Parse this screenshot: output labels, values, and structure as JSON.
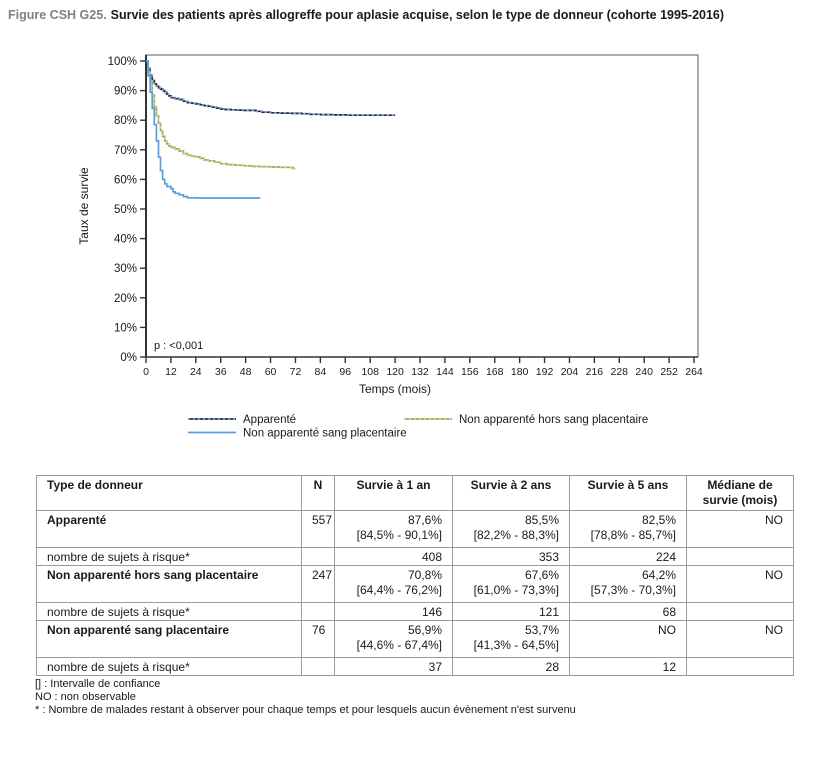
{
  "title": {
    "prefix": "Figure CSH G25.",
    "text": "Survie des patients après allogreffe pour aplasie acquise, selon le type de donneur (cohorte 1995-2016)"
  },
  "chart_data": {
    "type": "line",
    "subtype": "kaplan-meier-step",
    "xlabel": "Temps (mois)",
    "ylabel": "Taux de survie",
    "xlim": [
      0,
      264
    ],
    "ylim": [
      0,
      100
    ],
    "xticks": [
      0,
      12,
      24,
      36,
      48,
      60,
      72,
      84,
      96,
      108,
      120,
      132,
      144,
      156,
      168,
      180,
      192,
      204,
      216,
      228,
      240,
      252,
      264
    ],
    "yticks": [
      0,
      10,
      20,
      30,
      40,
      50,
      60,
      70,
      80,
      90,
      100
    ],
    "ytick_suffix": "%",
    "grid": false,
    "annotation": "p : <0,001",
    "legend_position": "bottom",
    "legend_rows": [
      [
        0,
        1
      ],
      [
        2
      ]
    ],
    "series": [
      {
        "name": "Apparenté",
        "color": "#1f2b52",
        "overlay_color": "#9fc6ea",
        "dashed_overlay": true,
        "points": [
          [
            0,
            100
          ],
          [
            1,
            97.5
          ],
          [
            2,
            95.2
          ],
          [
            3,
            93.4
          ],
          [
            4,
            92.3
          ],
          [
            5,
            91.5
          ],
          [
            6,
            91
          ],
          [
            7,
            90.5
          ],
          [
            8,
            90
          ],
          [
            9,
            89.4
          ],
          [
            10,
            88.8
          ],
          [
            11,
            88.2
          ],
          [
            12,
            87.6
          ],
          [
            14,
            87.3
          ],
          [
            16,
            87
          ],
          [
            18,
            86.4
          ],
          [
            20,
            85.9
          ],
          [
            22,
            85.7
          ],
          [
            24,
            85.5
          ],
          [
            26,
            85.2
          ],
          [
            28,
            84.9
          ],
          [
            30,
            84.7
          ],
          [
            32,
            84.4
          ],
          [
            34,
            84.1
          ],
          [
            36,
            83.8
          ],
          [
            38,
            83.6
          ],
          [
            41,
            83.5
          ],
          [
            44,
            83.4
          ],
          [
            47,
            83.3
          ],
          [
            53,
            83.0
          ],
          [
            56,
            82.7
          ],
          [
            60,
            82.5
          ],
          [
            65,
            82.4
          ],
          [
            70,
            82.3
          ],
          [
            75,
            82.2
          ],
          [
            79,
            82.0
          ],
          [
            84,
            81.9
          ],
          [
            90,
            81.8
          ],
          [
            97,
            81.7
          ],
          [
            120,
            81.7
          ]
        ]
      },
      {
        "name": "Non apparenté hors sang placentaire",
        "color": "#9caa50",
        "overlay_color": "#d6dda8",
        "dashed_overlay": true,
        "points": [
          [
            0,
            100
          ],
          [
            1,
            96.5
          ],
          [
            2,
            93
          ],
          [
            3,
            88.5
          ],
          [
            4,
            84.5
          ],
          [
            5,
            81.5
          ],
          [
            6,
            79
          ],
          [
            7,
            76.5
          ],
          [
            8,
            74.5
          ],
          [
            9,
            73
          ],
          [
            10,
            72
          ],
          [
            11,
            71.3
          ],
          [
            12,
            70.8
          ],
          [
            14,
            70.3
          ],
          [
            16,
            69.6
          ],
          [
            18,
            68.7
          ],
          [
            20,
            68.1
          ],
          [
            22,
            67.8
          ],
          [
            24,
            67.6
          ],
          [
            26,
            67.1
          ],
          [
            28,
            66.6
          ],
          [
            30,
            66.3
          ],
          [
            33,
            65.8
          ],
          [
            36,
            65.3
          ],
          [
            39,
            65
          ],
          [
            43,
            64.8
          ],
          [
            47,
            64.6
          ],
          [
            51,
            64.4
          ],
          [
            55,
            64.3
          ],
          [
            60,
            64.2
          ],
          [
            65,
            64.1
          ],
          [
            70,
            64
          ],
          [
            71,
            63.6
          ],
          [
            72,
            63.6
          ]
        ]
      },
      {
        "name": "Non apparenté sang placentaire",
        "color": "#55a0e5",
        "overlay_color": null,
        "dashed_overlay": false,
        "points": [
          [
            0,
            100
          ],
          [
            1,
            95
          ],
          [
            2,
            89.5
          ],
          [
            3,
            84
          ],
          [
            4,
            78.5
          ],
          [
            5,
            73
          ],
          [
            6,
            67.5
          ],
          [
            7,
            63
          ],
          [
            8,
            60
          ],
          [
            9,
            58.5
          ],
          [
            10,
            57.6
          ],
          [
            12,
            56.9
          ],
          [
            13,
            55.8
          ],
          [
            14,
            55.3
          ],
          [
            16,
            54.8
          ],
          [
            18,
            54.2
          ],
          [
            20,
            53.8
          ],
          [
            24,
            53.7
          ],
          [
            55,
            53.7
          ]
        ]
      }
    ]
  },
  "table": {
    "headers": [
      "Type de donneur",
      "N",
      "Survie à 1 an",
      "Survie à 2 ans",
      "Survie à 5 ans",
      "Médiane de survie (mois)"
    ],
    "groups": [
      {
        "name": "Apparenté",
        "n": "557",
        "survival": [
          {
            "value": "87,6%",
            "ci": "[84,5% - 90,1%]"
          },
          {
            "value": "85,5%",
            "ci": "[82,2% - 88,3%]"
          },
          {
            "value": "82,5%",
            "ci": "[78,8% - 85,7%]"
          }
        ],
        "median": "NO",
        "risk_label": "nombre de sujets à risque*",
        "at_risk": [
          "408",
          "353",
          "224"
        ]
      },
      {
        "name": "Non apparenté hors sang placentaire",
        "n": "247",
        "survival": [
          {
            "value": "70,8%",
            "ci": "[64,4% - 76,2%]"
          },
          {
            "value": "67,6%",
            "ci": "[61,0% - 73,3%]"
          },
          {
            "value": "64,2%",
            "ci": "[57,3% - 70,3%]"
          }
        ],
        "median": "NO",
        "risk_label": "nombre de sujets à risque*",
        "at_risk": [
          "146",
          "121",
          "68"
        ]
      },
      {
        "name": "Non apparenté sang placentaire",
        "n": "76",
        "survival": [
          {
            "value": "56,9%",
            "ci": "[44,6% - 67,4%]"
          },
          {
            "value": "53,7%",
            "ci": "[41,3% - 64,5%]"
          },
          {
            "value": "NO",
            "ci": ""
          }
        ],
        "median": "NO",
        "risk_label": "nombre de sujets à risque*",
        "at_risk": [
          "37",
          "28",
          "12"
        ]
      }
    ]
  },
  "footnotes": [
    "[] : Intervalle de confiance",
    "NO : non observable",
    "* : Nombre de malades restant à observer pour chaque temps et pour lesquels aucun évènement n'est survenu"
  ]
}
